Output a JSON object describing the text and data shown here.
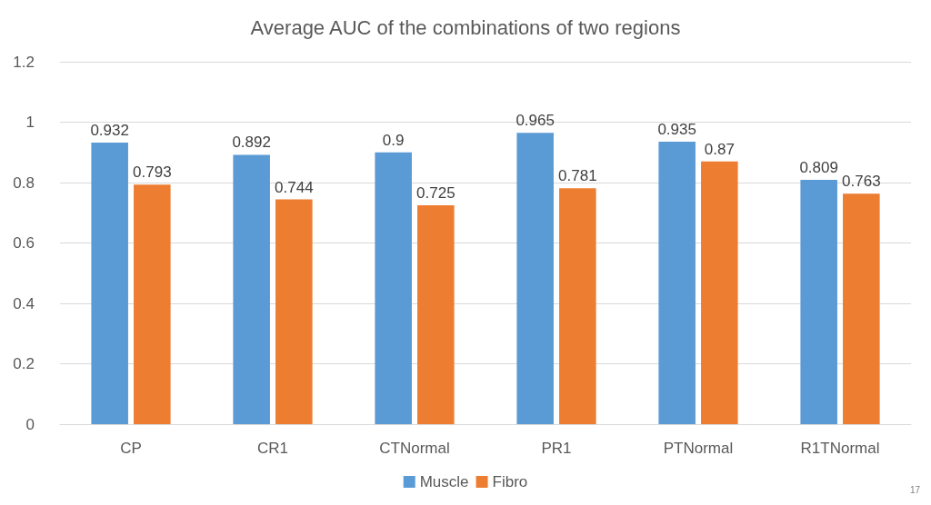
{
  "chart_data": {
    "type": "bar",
    "title": "Average AUC of the combinations of two regions",
    "categories": [
      "CP",
      "CR1",
      "CTNormal",
      "PR1",
      "PTNormal",
      "R1TNormal"
    ],
    "series": [
      {
        "name": "Muscle",
        "color": "#5b9bd5",
        "values": [
          0.932,
          0.892,
          0.9,
          0.965,
          0.935,
          0.809
        ]
      },
      {
        "name": "Fibro",
        "color": "#ed7d31",
        "values": [
          0.793,
          0.744,
          0.725,
          0.781,
          0.87,
          0.763
        ]
      }
    ],
    "ylim": [
      0,
      1.2
    ],
    "yticks": [
      0,
      0.2,
      0.4,
      0.6,
      0.8,
      1,
      1.2
    ],
    "grid": "y",
    "legend": "bottom",
    "data_labels": true,
    "annotations": [
      "17"
    ]
  }
}
